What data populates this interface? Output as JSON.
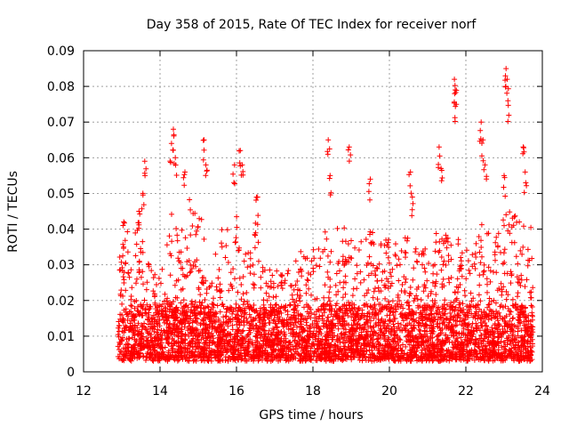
{
  "chart_data": {
    "type": "scatter",
    "title": "Day 358 of 2015, Rate Of TEC Index for receiver norf",
    "xlabel": "GPS time / hours",
    "ylabel": "ROTI / TECUs",
    "xlim": [
      12,
      24
    ],
    "ylim": [
      0,
      0.09
    ],
    "grid": true,
    "marker": "+",
    "color": "#ff0000",
    "x_ticks": [
      12,
      14,
      16,
      18,
      20,
      22,
      24
    ],
    "x_tick_labels": [
      "12",
      "14",
      "16",
      "18",
      "20",
      "22",
      "24"
    ],
    "y_ticks": [
      0,
      0.01,
      0.02,
      0.03,
      0.04,
      0.05,
      0.06,
      0.07,
      0.08,
      0.09
    ],
    "y_tick_labels": [
      "0",
      "0.01",
      "0.02",
      "0.03",
      "0.04",
      "0.05",
      "0.06",
      "0.07",
      "0.08",
      "0.09"
    ],
    "data_x_range": [
      12.9,
      23.75
    ],
    "baseline_range": [
      0.003,
      0.015
    ],
    "envelope": [
      [
        12.95,
        0.031
      ],
      [
        13.1,
        0.04
      ],
      [
        13.3,
        0.038
      ],
      [
        13.5,
        0.045
      ],
      [
        13.7,
        0.031
      ],
      [
        13.9,
        0.027
      ],
      [
        14.1,
        0.032
      ],
      [
        14.3,
        0.048
      ],
      [
        14.5,
        0.038
      ],
      [
        14.7,
        0.05
      ],
      [
        14.9,
        0.045
      ],
      [
        15.1,
        0.043
      ],
      [
        15.3,
        0.027
      ],
      [
        15.5,
        0.036
      ],
      [
        15.7,
        0.045
      ],
      [
        15.9,
        0.04
      ],
      [
        16.1,
        0.047
      ],
      [
        16.3,
        0.033
      ],
      [
        16.5,
        0.045
      ],
      [
        16.7,
        0.033
      ],
      [
        16.9,
        0.029
      ],
      [
        17.1,
        0.033
      ],
      [
        17.3,
        0.028
      ],
      [
        17.5,
        0.031
      ],
      [
        17.7,
        0.037
      ],
      [
        17.9,
        0.033
      ],
      [
        18.1,
        0.036
      ],
      [
        18.3,
        0.04
      ],
      [
        18.5,
        0.036
      ],
      [
        18.7,
        0.043
      ],
      [
        18.9,
        0.04
      ],
      [
        19.1,
        0.035
      ],
      [
        19.3,
        0.037
      ],
      [
        19.5,
        0.04
      ],
      [
        19.7,
        0.038
      ],
      [
        19.9,
        0.037
      ],
      [
        20.1,
        0.037
      ],
      [
        20.3,
        0.035
      ],
      [
        20.5,
        0.046
      ],
      [
        20.7,
        0.036
      ],
      [
        20.9,
        0.04
      ],
      [
        21.1,
        0.032
      ],
      [
        21.3,
        0.044
      ],
      [
        21.5,
        0.039
      ],
      [
        21.7,
        0.043
      ],
      [
        21.9,
        0.034
      ],
      [
        22.1,
        0.036
      ],
      [
        22.3,
        0.041
      ],
      [
        22.5,
        0.042
      ],
      [
        22.7,
        0.036
      ],
      [
        22.9,
        0.04
      ],
      [
        23.1,
        0.048
      ],
      [
        23.3,
        0.045
      ],
      [
        23.5,
        0.041
      ],
      [
        23.7,
        0.044
      ]
    ],
    "peaks": [
      [
        13.05,
        0.042
      ],
      [
        13.45,
        0.045
      ],
      [
        13.55,
        0.05
      ],
      [
        13.6,
        0.059
      ],
      [
        14.3,
        0.064
      ],
      [
        14.35,
        0.068
      ],
      [
        14.4,
        0.06
      ],
      [
        14.65,
        0.056
      ],
      [
        15.15,
        0.065
      ],
      [
        15.2,
        0.058
      ],
      [
        15.95,
        0.058
      ],
      [
        16.1,
        0.062
      ],
      [
        16.15,
        0.058
      ],
      [
        16.55,
        0.049
      ],
      [
        18.4,
        0.065
      ],
      [
        18.45,
        0.055
      ],
      [
        18.95,
        0.063
      ],
      [
        19.5,
        0.054
      ],
      [
        20.55,
        0.056
      ],
      [
        20.6,
        0.049
      ],
      [
        21.3,
        0.063
      ],
      [
        21.35,
        0.057
      ],
      [
        21.7,
        0.082
      ],
      [
        21.72,
        0.079
      ],
      [
        21.75,
        0.075
      ],
      [
        22.4,
        0.07
      ],
      [
        22.45,
        0.065
      ],
      [
        22.5,
        0.058
      ],
      [
        23.05,
        0.085
      ],
      [
        23.08,
        0.082
      ],
      [
        23.1,
        0.076
      ],
      [
        23.0,
        0.055
      ],
      [
        23.5,
        0.063
      ],
      [
        23.55,
        0.056
      ]
    ]
  }
}
